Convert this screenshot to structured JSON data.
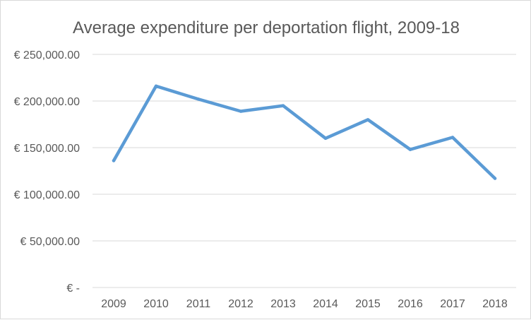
{
  "chart_data": {
    "type": "line",
    "title": "Average expenditure per deportation flight, 2009-18",
    "categories": [
      "2009",
      "2010",
      "2011",
      "2012",
      "2013",
      "2014",
      "2015",
      "2016",
      "2017",
      "2018"
    ],
    "series": [
      {
        "values": [
          136000,
          216000,
          202000,
          189000,
          195000,
          160000,
          180000,
          148000,
          161000,
          117000
        ]
      }
    ],
    "ylim": [
      0,
      250000
    ],
    "y_ticks": [
      0,
      50000,
      100000,
      150000,
      200000,
      250000
    ],
    "y_tick_labels": [
      "€ -",
      "€ 50,000.00",
      "€ 100,000.00",
      "€ 150,000.00",
      "€ 200,000.00",
      "€ 250,000.00"
    ],
    "xlabel": "",
    "ylabel": "",
    "grid": true,
    "legend": "none",
    "colors": {
      "line": "#5b9bd5",
      "grid": "#d9d9d9",
      "text": "#595959"
    }
  }
}
